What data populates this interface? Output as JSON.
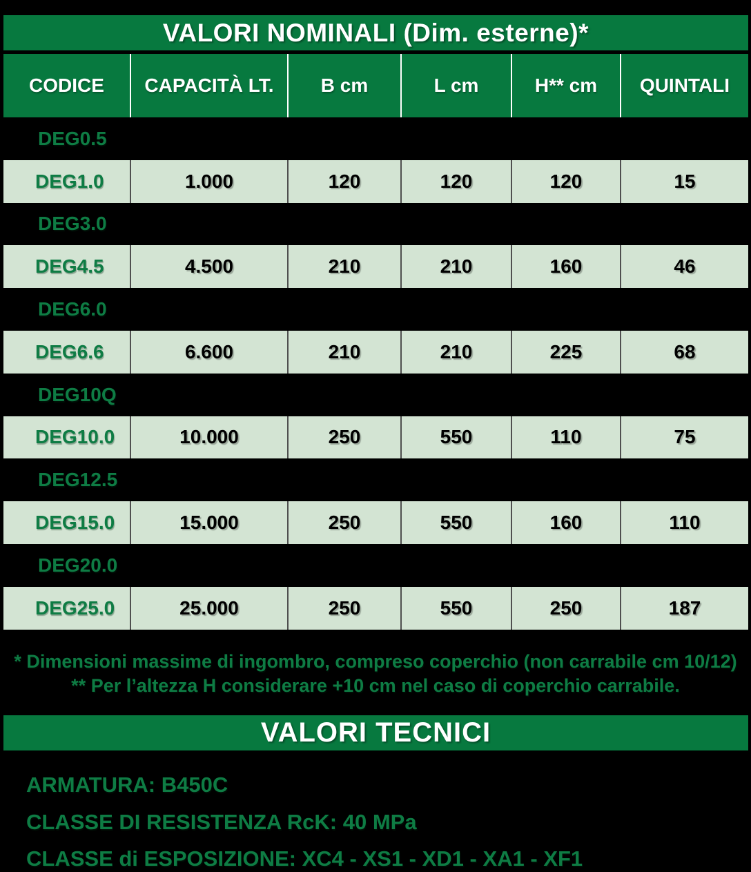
{
  "colors": {
    "bar_green": "#07793f",
    "text_green": "#0e7c44",
    "row_light_bg": "#d3e4d3",
    "row_separator": "#4f4f4f",
    "header_separator": "#ffffff",
    "background": "#000000",
    "value_text": "#000000",
    "header_text": "#ffffff"
  },
  "title": "VALORI NOMINALI (Dim. esterne)*",
  "table": {
    "headers": [
      "CODICE",
      "CAPACITÀ LT.",
      "B cm",
      "L cm",
      "H** cm",
      "QUINTALI"
    ],
    "rows": [
      {
        "code": "DEG0.5",
        "variant": "dark"
      },
      {
        "code": "DEG1.0",
        "variant": "light",
        "cells": [
          "1.000",
          "120",
          "120",
          "120",
          "15"
        ]
      },
      {
        "code": "DEG3.0",
        "variant": "dark"
      },
      {
        "code": "DEG4.5",
        "variant": "light",
        "cells": [
          "4.500",
          "210",
          "210",
          "160",
          "46"
        ]
      },
      {
        "code": "DEG6.0",
        "variant": "dark"
      },
      {
        "code": "DEG6.6",
        "variant": "light",
        "cells": [
          "6.600",
          "210",
          "210",
          "225",
          "68"
        ]
      },
      {
        "code": "DEG10Q",
        "variant": "dark"
      },
      {
        "code": "DEG10.0",
        "variant": "light",
        "cells": [
          "10.000",
          "250",
          "550",
          "110",
          "75"
        ]
      },
      {
        "code": "DEG12.5",
        "variant": "dark"
      },
      {
        "code": "DEG15.0",
        "variant": "light",
        "cells": [
          "15.000",
          "250",
          "550",
          "160",
          "110"
        ]
      },
      {
        "code": "DEG20.0",
        "variant": "dark"
      },
      {
        "code": "DEG25.0",
        "variant": "light",
        "cells": [
          "25.000",
          "250",
          "550",
          "250",
          "187"
        ]
      }
    ]
  },
  "footnotes": {
    "line1": "* Dimensioni massime di ingombro, compreso coperchio (non carrabile cm 10/12)",
    "line2": "** Per l’altezza H considerare +10 cm nel caso di coperchio carrabile."
  },
  "tech": {
    "title": "VALORI TECNICI",
    "lines": [
      "ARMATURA: B450C",
      "CLASSE DI RESISTENZA RcK: 40 MPa",
      "CLASSE di ESPOSIZIONE: XC4 - XS1 - XD1 - XA1 - XF1"
    ]
  }
}
